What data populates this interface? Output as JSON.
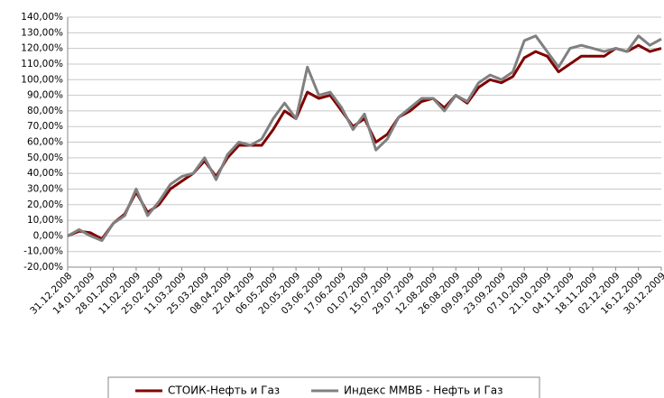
{
  "chart_data": {
    "type": "line",
    "categories": [
      "31.12.2008",
      null,
      "14.01.2009",
      null,
      "28.01.2009",
      null,
      "11.02.2009",
      null,
      "25.02.2009",
      null,
      "11.03.2009",
      null,
      "25.03.2009",
      null,
      "08.04.2009",
      null,
      "22.04.2009",
      null,
      "06.05.2009",
      null,
      "20.05.2009",
      null,
      "03.06.2009",
      null,
      "17.06.2009",
      null,
      "01.07.2009",
      null,
      "15.07.2009",
      null,
      "29.07.2009",
      null,
      "12.08.2009",
      null,
      "26.08.2009",
      null,
      "09.09.2009",
      null,
      "23.09.2009",
      null,
      "07.10.2009",
      null,
      "21.10.2009",
      null,
      "04.11.2009",
      null,
      "18.11.2009",
      null,
      "02.12.2009",
      null,
      "16.12.2009",
      null,
      "30.12.2009"
    ],
    "series": [
      {
        "name": "СТОИК-Нефть и Газ",
        "color": "#800000",
        "values": [
          0,
          3,
          2,
          -2,
          8,
          14,
          28,
          15,
          20,
          30,
          35,
          40,
          48,
          38,
          50,
          58,
          58,
          58,
          68,
          80,
          75,
          92,
          88,
          90,
          80,
          70,
          75,
          60,
          65,
          76,
          80,
          86,
          88,
          82,
          90,
          85,
          95,
          100,
          98,
          102,
          114,
          118,
          115,
          105,
          110,
          115,
          115,
          115,
          120,
          118,
          122,
          118,
          120
        ]
      },
      {
        "name": "Индекс ММВБ - Нефть и Газ",
        "color": "#808080",
        "values": [
          0,
          4,
          0,
          -3,
          8,
          13,
          30,
          13,
          22,
          33,
          38,
          40,
          50,
          36,
          52,
          60,
          58,
          62,
          75,
          85,
          75,
          108,
          90,
          92,
          82,
          68,
          78,
          55,
          62,
          76,
          82,
          88,
          88,
          80,
          90,
          86,
          98,
          103,
          100,
          105,
          125,
          128,
          118,
          108,
          120,
          122,
          120,
          118,
          120,
          118,
          128,
          122,
          126
        ]
      }
    ],
    "ylim": [
      -20,
      140
    ],
    "yticks": [
      {
        "value": -20,
        "label": "-20,00%"
      },
      {
        "value": -10,
        "label": "-10,00%"
      },
      {
        "value": 0,
        "label": "0,00%"
      },
      {
        "value": 10,
        "label": "10,00%"
      },
      {
        "value": 20,
        "label": "20,00%"
      },
      {
        "value": 30,
        "label": "30,00%"
      },
      {
        "value": 40,
        "label": "40,00%"
      },
      {
        "value": 50,
        "label": "50,00%"
      },
      {
        "value": 60,
        "label": "60,00%"
      },
      {
        "value": 70,
        "label": "70,00%"
      },
      {
        "value": 80,
        "label": "80,00%"
      },
      {
        "value": 90,
        "label": "90,00%"
      },
      {
        "value": 100,
        "label": "100,00%"
      },
      {
        "value": 110,
        "label": "110,00%"
      },
      {
        "value": 120,
        "label": "120,00%"
      },
      {
        "value": 130,
        "label": "130,00%"
      },
      {
        "value": 140,
        "label": "140,00%"
      }
    ],
    "grid": true,
    "legend": "bottom"
  }
}
